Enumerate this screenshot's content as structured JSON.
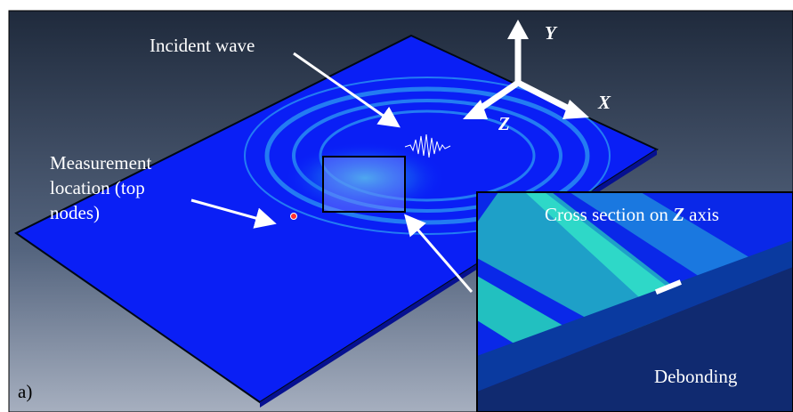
{
  "labels": {
    "incident_wave": "Incident wave",
    "measurement": [
      "Measurement",
      "location (top",
      "nodes)"
    ],
    "panel": "a)",
    "debonding": "Debonding"
  },
  "axes": {
    "y": "Y",
    "x": "X",
    "z": "Z"
  },
  "inset": {
    "title_parts": [
      "Cross section on ",
      "Z",
      " axis"
    ]
  }
}
